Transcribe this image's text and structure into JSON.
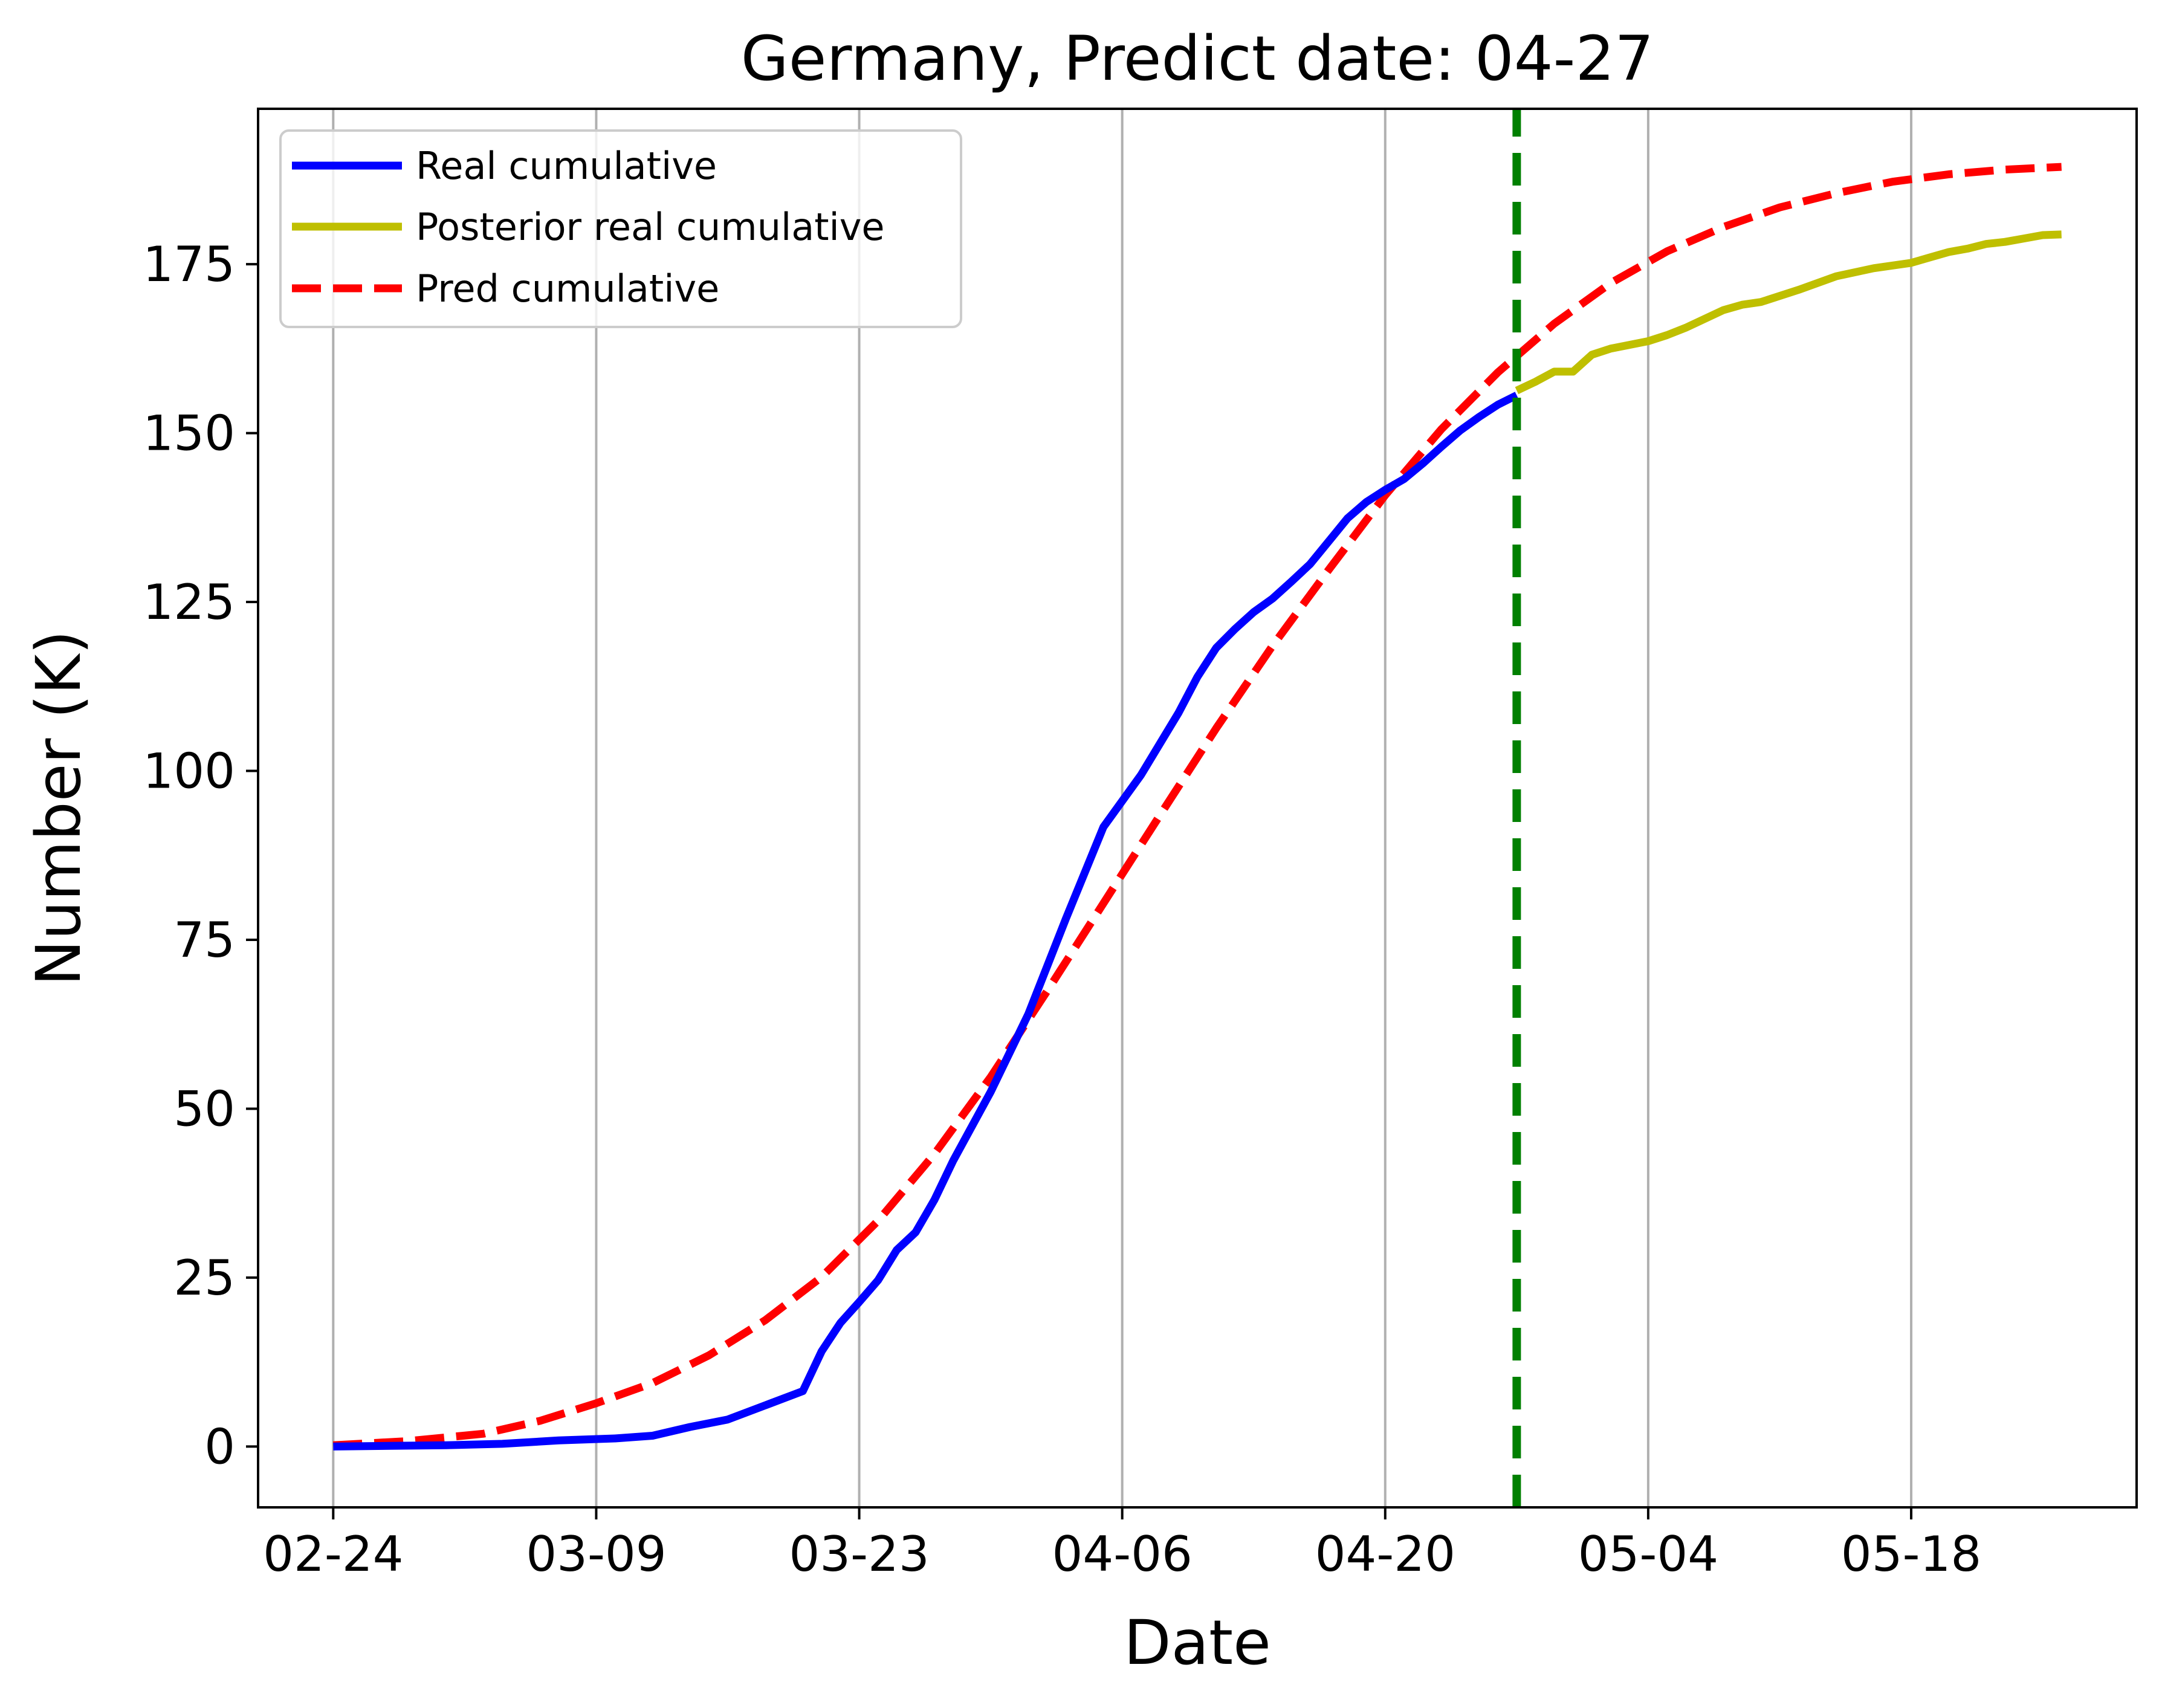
{
  "chart_data": {
    "type": "line",
    "title": "Germany, Predict date: 04-27",
    "xlabel": "Date",
    "ylabel": "Number (K)",
    "x_ticks": [
      "02-24",
      "03-09",
      "03-23",
      "04-06",
      "04-20",
      "05-04",
      "05-18"
    ],
    "y_ticks": [
      0,
      25,
      50,
      75,
      100,
      125,
      150,
      175
    ],
    "xlim": [
      "02-20",
      "05-30"
    ],
    "ylim": [
      -9,
      198
    ],
    "grid": "vertical",
    "legend_position": "top-left",
    "predict_date": "04-27",
    "series": [
      {
        "name": "Real cumulative",
        "color": "#0000ff",
        "style": "solid",
        "x": [
          "02-24",
          "02-27",
          "03-01",
          "03-04",
          "03-07",
          "03-10",
          "03-12",
          "03-14",
          "03-16",
          "03-18",
          "03-20",
          "03-21",
          "03-22",
          "03-23",
          "03-24",
          "03-25",
          "03-26",
          "03-27",
          "03-28",
          "03-30",
          "04-01",
          "04-03",
          "04-05",
          "04-07",
          "04-09",
          "04-10",
          "04-11",
          "04-12",
          "04-13",
          "04-14",
          "04-15",
          "04-16",
          "04-17",
          "04-18",
          "04-19",
          "04-20",
          "04-21",
          "04-22",
          "04-23",
          "04-24",
          "04-25",
          "04-26",
          "04-27"
        ],
        "values": [
          0.0,
          0.1,
          0.2,
          0.4,
          0.9,
          1.2,
          1.6,
          2.9,
          4.0,
          6.1,
          8.2,
          14.1,
          18.3,
          21.4,
          24.6,
          29.1,
          31.7,
          36.5,
          42.3,
          52.5,
          64.0,
          78.1,
          91.7,
          99.4,
          108.6,
          113.9,
          118.2,
          121.0,
          123.5,
          125.5,
          128.0,
          130.6,
          134.0,
          137.4,
          139.8,
          141.6,
          143.2,
          145.5,
          148.0,
          150.4,
          152.4,
          154.2,
          155.6
        ]
      },
      {
        "name": "Posterior real cumulative",
        "color": "#bfbf00",
        "style": "solid",
        "x": [
          "04-27",
          "04-28",
          "04-29",
          "04-30",
          "05-01",
          "05-02",
          "05-04",
          "05-05",
          "05-06",
          "05-08",
          "05-09",
          "05-10",
          "05-12",
          "05-14",
          "05-16",
          "05-18",
          "05-19",
          "05-20",
          "05-21",
          "05-22",
          "05-23",
          "05-24",
          "05-25",
          "05-26"
        ],
        "values": [
          156.3,
          157.6,
          159.1,
          159.1,
          161.6,
          162.5,
          163.6,
          164.5,
          165.6,
          168.2,
          169.0,
          169.4,
          171.2,
          173.2,
          174.4,
          175.2,
          176.0,
          176.8,
          177.3,
          178.0,
          178.3,
          178.8,
          179.3,
          179.4
        ]
      },
      {
        "name": "Pred cumulative",
        "color": "#ff0000",
        "style": "dashed",
        "x": [
          "02-24",
          "02-28",
          "03-03",
          "03-06",
          "03-09",
          "03-12",
          "03-15",
          "03-18",
          "03-21",
          "03-24",
          "03-27",
          "03-30",
          "04-02",
          "04-05",
          "04-08",
          "04-11",
          "04-14",
          "04-17",
          "04-20",
          "04-23",
          "04-26",
          "04-29",
          "05-02",
          "05-05",
          "05-08",
          "05-11",
          "05-14",
          "05-17",
          "05-20",
          "05-23",
          "05-26"
        ],
        "values": [
          0.2,
          0.8,
          1.9,
          3.8,
          6.4,
          9.4,
          13.5,
          18.7,
          25.1,
          33.4,
          43.3,
          54.7,
          67.4,
          80.4,
          93.4,
          106.3,
          118.5,
          129.8,
          140.8,
          150.6,
          159.0,
          166.2,
          172.2,
          176.9,
          180.5,
          183.4,
          185.5,
          187.2,
          188.3,
          189.0,
          189.4
        ]
      },
      {
        "name": "",
        "color": "#008000",
        "style": "dashed-vertical",
        "x": [
          "04-27",
          "04-27"
        ],
        "values": [
          -9,
          198
        ]
      }
    ]
  }
}
